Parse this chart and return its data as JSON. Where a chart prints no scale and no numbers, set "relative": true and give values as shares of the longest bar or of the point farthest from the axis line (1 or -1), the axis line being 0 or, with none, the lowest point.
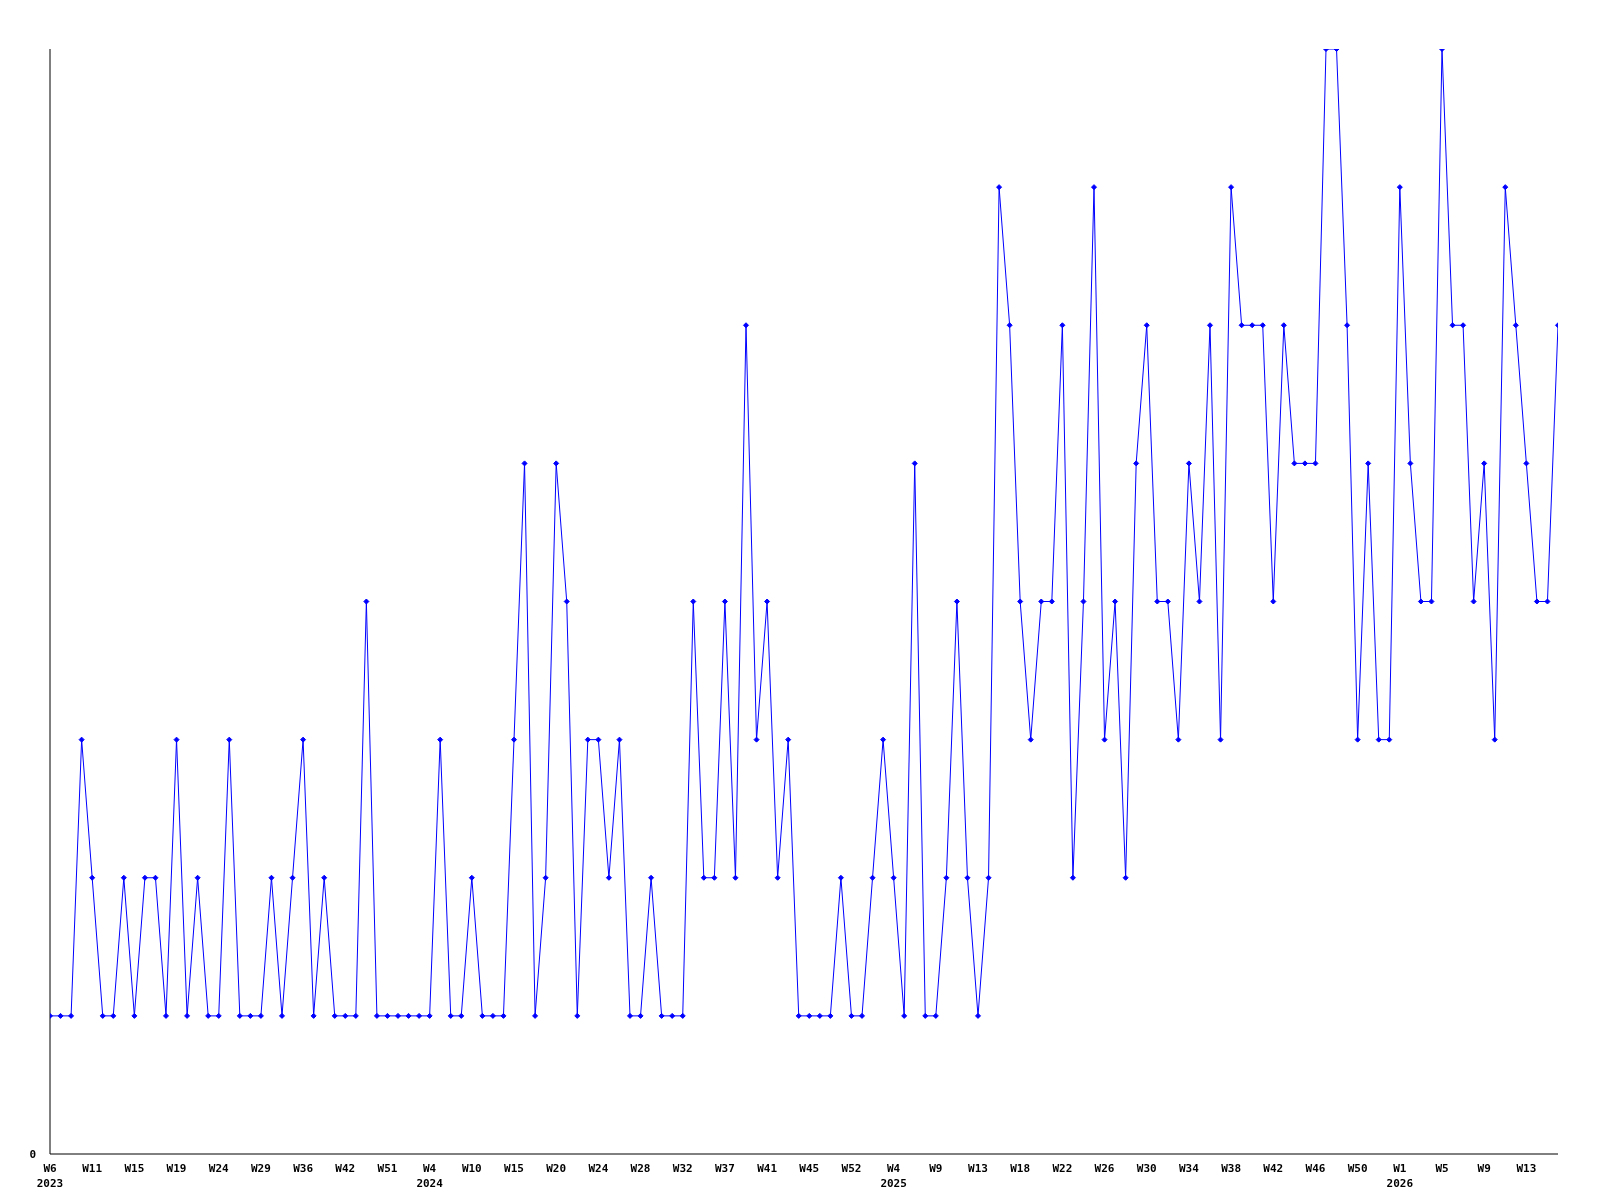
{
  "chart_data": {
    "type": "line",
    "relative": true,
    "annotations": [
      "0"
    ],
    "grid": false,
    "legend": false,
    "marker": "diamond",
    "line_style": "solid",
    "categories": [
      "W6\n2023",
      null,
      null,
      null,
      "W11",
      null,
      null,
      null,
      "W15",
      null,
      null,
      null,
      "W19",
      null,
      null,
      null,
      "W24",
      null,
      null,
      null,
      "W29",
      null,
      null,
      null,
      "W36",
      null,
      null,
      null,
      "W42",
      null,
      null,
      null,
      "W51",
      null,
      null,
      null,
      "W4\n2024",
      null,
      null,
      null,
      "W10",
      null,
      null,
      null,
      "W15",
      null,
      null,
      null,
      "W20",
      null,
      null,
      null,
      "W24",
      null,
      null,
      null,
      "W28",
      null,
      null,
      null,
      "W32",
      null,
      null,
      null,
      "W37",
      null,
      null,
      null,
      "W41",
      null,
      null,
      null,
      "W45",
      null,
      null,
      null,
      "W52",
      null,
      null,
      null,
      "W4\n2025",
      null,
      null,
      null,
      "W9",
      null,
      null,
      null,
      "W13",
      null,
      null,
      null,
      "W18",
      null,
      null,
      null,
      "W22",
      null,
      null,
      null,
      "W26",
      null,
      null,
      null,
      "W30",
      null,
      null,
      null,
      "W34",
      null,
      null,
      null,
      "W38",
      null,
      null,
      null,
      "W42",
      null,
      null,
      null,
      "W46",
      null,
      null,
      null,
      "W50",
      null,
      null,
      null,
      "W1\n2026",
      null,
      null,
      null,
      "W5",
      null,
      null,
      null,
      "W9",
      null,
      null,
      null,
      "W13",
      null,
      null,
      null
    ],
    "series": [
      {
        "color": "#0000ff",
        "values": [
          0.125,
          0.125,
          0.125,
          0.375,
          0.25,
          0.125,
          0.125,
          0.25,
          0.125,
          0.25,
          0.25,
          0.125,
          0.375,
          0.125,
          0.25,
          0.125,
          0.125,
          0.375,
          0.125,
          0.125,
          0.125,
          0.25,
          0.125,
          0.25,
          0.375,
          0.125,
          0.25,
          0.125,
          0.125,
          0.125,
          0.5,
          0.125,
          0.125,
          0.125,
          0.125,
          0.125,
          0.125,
          0.375,
          0.125,
          0.125,
          0.25,
          0.125,
          0.125,
          0.125,
          0.375,
          0.625,
          0.125,
          0.25,
          0.625,
          0.5,
          0.125,
          0.375,
          0.375,
          0.25,
          0.375,
          0.125,
          0.125,
          0.25,
          0.125,
          0.125,
          0.125,
          0.5,
          0.25,
          0.25,
          0.5,
          0.25,
          0.75,
          0.375,
          0.5,
          0.25,
          0.375,
          0.125,
          0.125,
          0.125,
          0.125,
          0.25,
          0.125,
          0.125,
          0.25,
          0.375,
          0.25,
          0.125,
          0.625,
          0.125,
          0.125,
          0.25,
          0.5,
          0.25,
          0.125,
          0.25,
          0.875,
          0.75,
          0.5,
          0.375,
          0.5,
          0.5,
          0.75,
          0.25,
          0.5,
          0.875,
          0.375,
          0.5,
          0.25,
          0.625,
          0.75,
          0.5,
          0.5,
          0.375,
          0.625,
          0.5,
          0.75,
          0.375,
          0.875,
          0.75,
          0.75,
          0.75,
          0.5,
          0.75,
          0.625,
          0.625,
          0.625,
          1,
          1,
          0.75,
          0.375,
          0.625,
          0.375,
          0.375,
          0.875,
          0.625,
          0.5,
          0.5,
          1,
          0.75,
          0.75,
          0.5,
          0.625,
          0.375,
          0.875,
          0.75,
          0.625,
          0.5,
          0.5,
          0.75
        ]
      }
    ]
  }
}
